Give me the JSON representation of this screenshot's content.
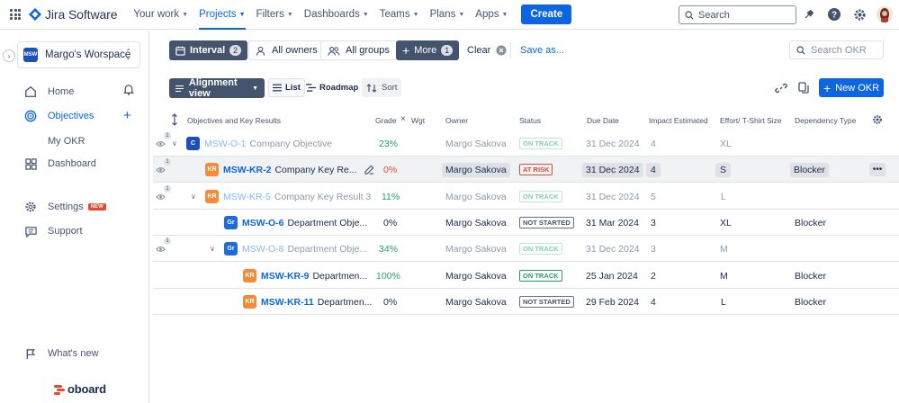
{
  "topnav": {
    "brand": "Jira Software",
    "items": [
      {
        "label": "Your work"
      },
      {
        "label": "Projects"
      },
      {
        "label": "Filters"
      },
      {
        "label": "Dashboards"
      },
      {
        "label": "Teams"
      },
      {
        "label": "Plans"
      },
      {
        "label": "Apps"
      }
    ],
    "active": "Projects",
    "create_label": "Create",
    "search_placeholder": "Search"
  },
  "sidebar": {
    "workspace_logo": "MSW",
    "workspace_name": "Margo's Worspace",
    "items": [
      {
        "label": "Home",
        "icon": "home-icon"
      },
      {
        "label": "Objectives",
        "icon": "target-icon"
      },
      {
        "label": "My OKR"
      },
      {
        "label": "Dashboard",
        "icon": "dashboard-icon"
      },
      {
        "label": "Settings",
        "icon": "gear-icon",
        "badge": "NEW"
      },
      {
        "label": "Support",
        "icon": "chat-icon"
      },
      {
        "label": "What's new",
        "icon": "flag-icon"
      }
    ],
    "footer_logo": "oboard"
  },
  "toolbar": {
    "interval_label": "Interval",
    "interval_count": "2",
    "owners_label": "All owners",
    "groups_label": "All groups",
    "more_label": "More",
    "more_count": "1",
    "clear_label": "Clear",
    "save_label": "Save as...",
    "search_placeholder": "Search OKR",
    "view_label": "Alignment view",
    "list_label": "List",
    "roadmap_label": "Roadmap",
    "sort_label": "Sort",
    "new_okr_label": "New OKR"
  },
  "table": {
    "headers": {
      "objectives": "Objectives and Key Results",
      "grade": "Grade",
      "wgt": "Wgt",
      "owner": "Owner",
      "status": "Status",
      "due": "Due Date",
      "impact": "Impact Estimated",
      "effort": "Effort/ T-Shirt Size",
      "dependency": "Dependency Type"
    },
    "rows": [
      {
        "key": "MSW-O-1",
        "name": "Company Objective",
        "tag": "C",
        "grade": "23%",
        "owner": "Margo Sakova",
        "status": "ON TRACK",
        "due": "31 Dec 2024",
        "impact": "4",
        "effort": "XL",
        "dependency": "",
        "eye_count": "1"
      },
      {
        "key": "MSW-KR-2",
        "name": "Company Key Re...",
        "tag": "KR",
        "grade": "0%",
        "owner": "Margo Sakova",
        "status": "AT RISK",
        "due": "31 Dec 2024",
        "impact": "4",
        "effort": "S",
        "dependency": "Blocker",
        "eye_count": "1",
        "more": "•••"
      },
      {
        "key": "MSW-KR-5",
        "name": "Company Key Result 3",
        "tag": "KR",
        "grade": "11%",
        "owner": "Margo Sakova",
        "status": "ON TRACK",
        "due": "31 Dec 2024",
        "impact": "5",
        "effort": "L",
        "dependency": "",
        "eye_count": "1"
      },
      {
        "key": "MSW-O-6",
        "name": "Department Obje...",
        "tag": "Gr",
        "grade": "0%",
        "owner": "Margo Sakova",
        "status": "NOT STARTED",
        "due": "31 Mar 2024",
        "impact": "3",
        "effort": "XL",
        "dependency": "Blocker"
      },
      {
        "key": "MSW-O-8",
        "name": "Department Obje...",
        "tag": "Gr",
        "grade": "34%",
        "owner": "Margo Sakova",
        "status": "ON TRACK",
        "due": "31 Dec 2024",
        "impact": "3",
        "effort": "M",
        "dependency": "",
        "eye_count": "1"
      },
      {
        "key": "MSW-KR-9",
        "name": "Departmen...",
        "tag": "KR",
        "grade": "100%",
        "owner": "Margo Sakova",
        "status": "ON TRACK",
        "due": "25 Jan 2024",
        "impact": "2",
        "effort": "M",
        "dependency": "Blocker"
      },
      {
        "key": "MSW-KR-11",
        "name": "Departmen...",
        "tag": "KR",
        "grade": "0%",
        "owner": "Margo Sakova",
        "status": "NOT STARTED",
        "due": "29 Feb 2024",
        "impact": "4",
        "effort": "L",
        "dependency": "Blocker"
      }
    ]
  },
  "colors": {
    "accent": "#0c66e4",
    "on_track": "#22a06b",
    "at_risk": "#e34935",
    "dark_button": "#44546f"
  }
}
